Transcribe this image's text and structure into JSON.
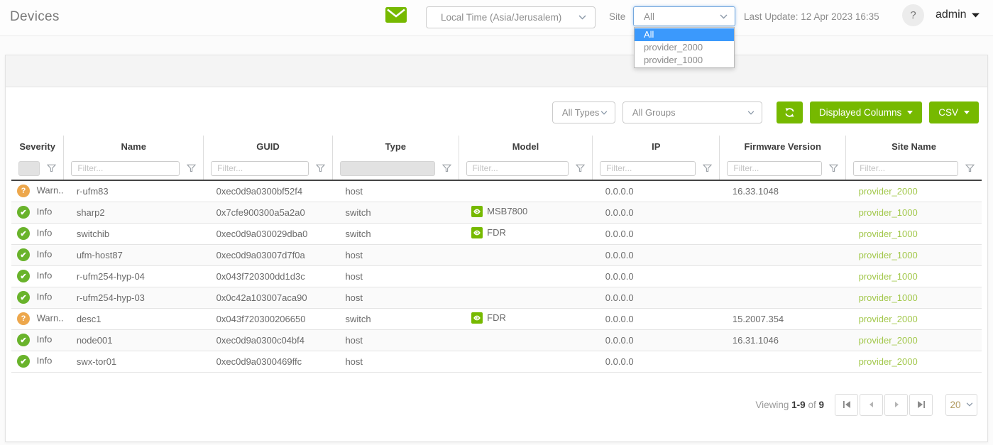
{
  "topbar": {
    "title": "Devices",
    "time_zone": "Local Time (Asia/Jerusalem)",
    "site_label": "Site",
    "site_value": "All",
    "site_options": [
      "All",
      "provider_2000",
      "provider_1000"
    ],
    "site_selected_index": 0,
    "last_update": "Last Update: 12 Apr 2023 16:35",
    "help_glyph": "?",
    "username": "admin"
  },
  "toolbar": {
    "type_filter_value": "All Types",
    "group_filter_value": "All Groups",
    "displayed_columns_label": "Displayed Columns",
    "csv_label": "CSV"
  },
  "table": {
    "columns": [
      "Severity",
      "Name",
      "GUID",
      "Type",
      "Model",
      "IP",
      "Firmware Version",
      "Site Name"
    ],
    "filter_placeholder": "Filter...",
    "rows": [
      {
        "severity": "warning",
        "severity_label": "Warn...",
        "name": "r-ufm83",
        "guid": "0xec0d9a0300bf52f4",
        "type": "host",
        "model": "",
        "ip": "0.0.0.0",
        "firmware": "16.33.1048",
        "site": "provider_2000"
      },
      {
        "severity": "info",
        "severity_label": "Info",
        "name": "sharp2",
        "guid": "0x7cfe900300a5a2a0",
        "type": "switch",
        "model": "MSB7800",
        "ip": "0.0.0.0",
        "firmware": "",
        "site": "provider_1000"
      },
      {
        "severity": "info",
        "severity_label": "Info",
        "name": "switchib",
        "guid": "0xec0d9a030029dba0",
        "type": "switch",
        "model": "FDR",
        "ip": "0.0.0.0",
        "firmware": "",
        "site": "provider_1000"
      },
      {
        "severity": "info",
        "severity_label": "Info",
        "name": "ufm-host87",
        "guid": "0xec0d9a03007d7f0a",
        "type": "host",
        "model": "",
        "ip": "0.0.0.0",
        "firmware": "",
        "site": "provider_1000"
      },
      {
        "severity": "info",
        "severity_label": "Info",
        "name": "r-ufm254-hyp-04",
        "guid": "0x043f720300dd1d3c",
        "type": "host",
        "model": "",
        "ip": "0.0.0.0",
        "firmware": "",
        "site": "provider_1000"
      },
      {
        "severity": "info",
        "severity_label": "Info",
        "name": "r-ufm254-hyp-03",
        "guid": "0x0c42a103007aca90",
        "type": "host",
        "model": "",
        "ip": "0.0.0.0",
        "firmware": "",
        "site": "provider_1000"
      },
      {
        "severity": "warning",
        "severity_label": "Warn...",
        "name": "desc1",
        "guid": "0x043f720300206650",
        "type": "switch",
        "model": "FDR",
        "ip": "0.0.0.0",
        "firmware": "15.2007.354",
        "site": "provider_2000"
      },
      {
        "severity": "info",
        "severity_label": "Info",
        "name": "node001",
        "guid": "0xec0d9a0300c04bf4",
        "type": "host",
        "model": "",
        "ip": "0.0.0.0",
        "firmware": "16.31.1046",
        "site": "provider_2000"
      },
      {
        "severity": "info",
        "severity_label": "Info",
        "name": "swx-tor01",
        "guid": "0xec0d9a0300469ffc",
        "type": "host",
        "model": "",
        "ip": "0.0.0.0",
        "firmware": "",
        "site": "provider_2000"
      }
    ]
  },
  "pagination": {
    "viewing_label": "Viewing",
    "range": "1-9",
    "of_label": "of",
    "total": "9",
    "page_size": "20"
  },
  "colors": {
    "brand_green": "#76b900",
    "site_link_green": "#a3c84c",
    "info_green": "#69b32b",
    "warning_orange": "#eda74c",
    "selection_blue": "#3b99fc"
  }
}
